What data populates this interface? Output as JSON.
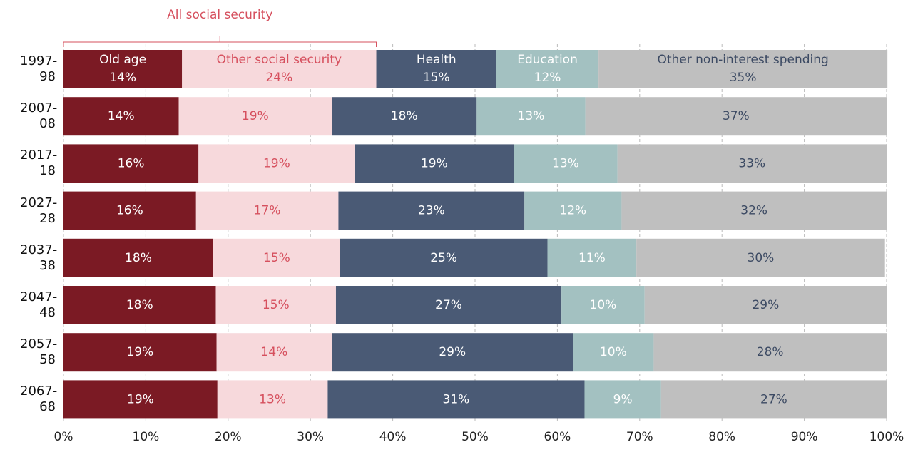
{
  "chart_data": {
    "type": "stacked-bar-horizontal",
    "annotation": "All social security",
    "categories": [
      "1997-98",
      "2007-08",
      "2017-18",
      "2027-28",
      "2037-38",
      "2047-48",
      "2057-58",
      "2067-68"
    ],
    "series": [
      {
        "name": "Old age",
        "color": "#7b1a24",
        "label_color": "#ffffff",
        "values": [
          14.4,
          14.0,
          16.4,
          16.1,
          18.2,
          18.5,
          18.6,
          18.7
        ],
        "value_labels": [
          "14%",
          "14%",
          "16%",
          "16%",
          "18%",
          "18%",
          "19%",
          "19%"
        ]
      },
      {
        "name": "Other social security",
        "color": "#f7d9dc",
        "label_color": "#d6505e",
        "values": [
          23.6,
          18.6,
          19.0,
          17.3,
          15.4,
          14.6,
          14.0,
          13.4
        ],
        "value_labels": [
          "24%",
          "19%",
          "19%",
          "17%",
          "15%",
          "15%",
          "14%",
          "13%"
        ]
      },
      {
        "name": "Health",
        "color": "#4a5a75",
        "label_color": "#ffffff",
        "values": [
          14.6,
          17.6,
          19.3,
          22.6,
          25.2,
          27.4,
          29.3,
          31.2
        ],
        "value_labels": [
          "15%",
          "18%",
          "19%",
          "23%",
          "25%",
          "27%",
          "29%",
          "31%"
        ]
      },
      {
        "name": "Education",
        "color": "#a3c1c1",
        "label_color": "#ffffff",
        "values": [
          12.4,
          13.2,
          12.6,
          11.8,
          10.8,
          10.1,
          9.8,
          9.3
        ],
        "value_labels": [
          "12%",
          "13%",
          "13%",
          "12%",
          "11%",
          "10%",
          "10%",
          "9%"
        ]
      },
      {
        "name": "Other non-interest spending",
        "color": "#bfbfbf",
        "label_color": "#3c4a63",
        "values": [
          35.1,
          36.6,
          32.7,
          32.2,
          30.2,
          29.4,
          28.3,
          27.4
        ],
        "value_labels": [
          "35%",
          "37%",
          "33%",
          "32%",
          "30%",
          "29%",
          "28%",
          "27%"
        ]
      }
    ],
    "xlim": [
      0,
      100
    ],
    "xticks": [
      {
        "value": 0,
        "label": "0%"
      },
      {
        "value": 10,
        "label": "10%"
      },
      {
        "value": 20,
        "label": "20%"
      },
      {
        "value": 30,
        "label": "30%"
      },
      {
        "value": 40,
        "label": "40%"
      },
      {
        "value": 50,
        "label": "50%"
      },
      {
        "value": 60,
        "label": "60%"
      },
      {
        "value": 70,
        "label": "70%"
      },
      {
        "value": 80,
        "label": "80%"
      },
      {
        "value": 90,
        "label": "90%"
      },
      {
        "value": 100,
        "label": "100%"
      }
    ],
    "grid": true
  }
}
